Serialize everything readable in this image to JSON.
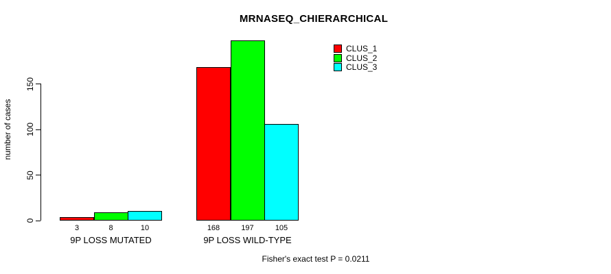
{
  "title": "MRNASEQ_CHIERARCHICAL",
  "annotation": "Fisher's exact test P = 0.0211",
  "colors": {
    "background": "#ffffff",
    "axis": "#000000",
    "text": "#000000",
    "bar_border": "#000000",
    "clus_1": "#ff0000",
    "clus_2": "#00ff00",
    "clus_3": "#00ffff"
  },
  "chart_data": {
    "type": "bar",
    "title": "MRNASEQ_CHIERARCHICAL",
    "xlabel": "",
    "ylabel": "number of cases",
    "ylim": [
      0,
      150
    ],
    "yticks": [
      0,
      50,
      100,
      150
    ],
    "grid": false,
    "legend_position": "top-right-inside",
    "value_labels_position": "below-baseline",
    "categories": [
      "9P LOSS MUTATED",
      "9P LOSS WILD-TYPE"
    ],
    "series": [
      {
        "name": "CLUS_1",
        "color": "#ff0000",
        "values": [
          3,
          168
        ]
      },
      {
        "name": "CLUS_2",
        "color": "#00ff00",
        "values": [
          8,
          197
        ]
      },
      {
        "name": "CLUS_3",
        "color": "#00ffff",
        "values": [
          10,
          105
        ]
      }
    ],
    "annotation": "Fisher's exact test P = 0.0211"
  }
}
